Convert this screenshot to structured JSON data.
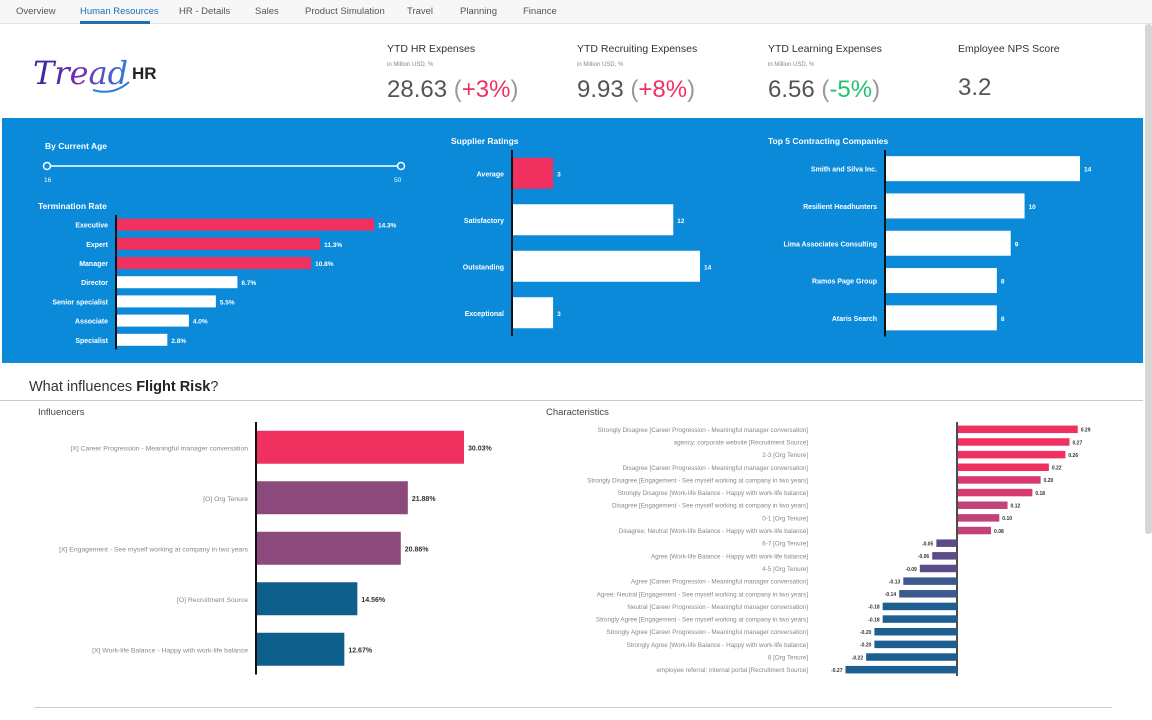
{
  "tabs": [
    "Overview",
    "Human Resources",
    "HR - Details",
    "Sales",
    "Product Simulation",
    "Travel",
    "Planning",
    "Finance"
  ],
  "active_tab": "Human Resources",
  "logo": {
    "script": "Tread",
    "suffix": "HR"
  },
  "kpis": [
    {
      "title": "YTD HR Expenses",
      "unit": "in Million USD, %",
      "value": "28.63",
      "change": "+3%",
      "direction": "up"
    },
    {
      "title": "YTD Recruiting Expenses",
      "unit": "in Million USD, %",
      "value": "9.93",
      "change": "+8%",
      "direction": "up"
    },
    {
      "title": "YTD Learning Expenses",
      "unit": "in Million USD, %",
      "value": "6.56",
      "change": "-5%",
      "direction": "down"
    },
    {
      "title": "Employee NPS Score",
      "unit": "",
      "value": "3.2",
      "change": "",
      "direction": ""
    }
  ],
  "age_filter": {
    "label": "By Current Age",
    "min": 16,
    "max": 50,
    "min_label": "16",
    "max_label": "50"
  },
  "colors": {
    "accent_red": "#f0315f",
    "panel_blue": "#0a8ad9",
    "tab_blue": "#1d6fb0",
    "purple": "#8b4a7b",
    "navy": "#0e5f8c",
    "kpi_positive": "#f0315f",
    "kpi_negative": "#27c06c",
    "char_red": "#f0315f",
    "char_pink": "#c2437a",
    "char_purple": "#5b4b88",
    "char_blue": "#1e5f92"
  },
  "chart_data": [
    {
      "type": "bar",
      "orientation": "horizontal",
      "title": "Termination Rate",
      "categories": [
        "Executive",
        "Expert",
        "Manager",
        "Director",
        "Senior specialist",
        "Associate",
        "Specialist"
      ],
      "values": [
        14.3,
        11.3,
        10.8,
        6.7,
        5.5,
        4.0,
        2.8
      ],
      "labels": [
        "14.3%",
        "11.3%",
        "10.8%",
        "6.7%",
        "5.5%",
        "4.0%",
        "2.8%"
      ],
      "highlight": [
        true,
        true,
        true,
        false,
        false,
        false,
        false
      ],
      "xlim": [
        0,
        14.3
      ]
    },
    {
      "type": "bar",
      "orientation": "horizontal",
      "title": "Supplier Ratings",
      "categories": [
        "Average",
        "Satisfactory",
        "Outstanding",
        "Exceptional"
      ],
      "values": [
        3,
        12,
        14,
        3
      ],
      "labels": [
        "3",
        "12",
        "14",
        "3"
      ],
      "highlight": [
        true,
        false,
        false,
        false
      ],
      "xlim": [
        0,
        14
      ]
    },
    {
      "type": "bar",
      "orientation": "horizontal",
      "title": "Top 5 Contracting Companies",
      "categories": [
        "Smith and Silva Inc.",
        "Resilient Headhunters",
        "Lima Associates Consulting",
        "Ramos Page Group",
        "Ataris Search"
      ],
      "values": [
        14,
        10,
        9,
        8,
        8
      ],
      "labels": [
        "14",
        "10",
        "9",
        "8",
        "8"
      ],
      "xlim": [
        0,
        14
      ]
    },
    {
      "type": "bar",
      "orientation": "horizontal",
      "title": "Influencers",
      "categories": [
        "[X] Career Progression - Meaningful manager conversation",
        "[O] Org Tenure",
        "[X] Engagement - See myself working at company in two years",
        "[O] Recruitment Source",
        "[X] Work-life Balance - Happy with work-life balance"
      ],
      "values": [
        30.03,
        21.88,
        20.86,
        14.56,
        12.67
      ],
      "labels": [
        "30.03%",
        "21.88%",
        "20.86%",
        "14.56%",
        "12.67%"
      ],
      "colors": [
        "#f0315f",
        "#8b4a7b",
        "#8b4a7b",
        "#0e5f8c",
        "#0e5f8c"
      ],
      "xlim": [
        0,
        30.03
      ]
    },
    {
      "type": "bar",
      "orientation": "horizontal",
      "title": "Characteristics",
      "categories": [
        "Strongly Disagree [Career Progression - Meaningful manager conversation]",
        "agency; corporate website [Recruitment Source]",
        "2-3 [Org Tenure]",
        "Disagree [Career Progression - Meaningful manager conversation]",
        "Strongly Disagree [Engagement - See myself working at company in two years]",
        "Strongly Disagree [Work-life Balance - Happy with work-life balance]",
        "Disagree [Engagement - See myself working at company in two years]",
        "0-1 [Org Tenure]",
        "Disagree; Neutral [Work-life Balance - Happy with work-life balance]",
        "6-7 [Org Tenure]",
        "Agree [Work-life Balance - Happy with work-life balance]",
        "4-5 [Org Tenure]",
        "Agree [Career Progression - Meaningful manager conversation]",
        "Agree; Neutral [Engagement - See myself working at company in two years]",
        "Neutral [Career Progression - Meaningful manager conversation]",
        "Strongly Agree [Engagement - See myself working at company in two years]",
        "Strongly Agree [Career Progression - Meaningful manager conversation]",
        "Strongly Agree [Work-life Balance - Happy with work-life balance]",
        "8 [Org Tenure]",
        "employee referral; internal portal [Recruitment Source]"
      ],
      "values": [
        0.29,
        0.27,
        0.26,
        0.22,
        0.2,
        0.18,
        0.12,
        0.1,
        0.08,
        -0.05,
        -0.06,
        -0.09,
        -0.13,
        -0.14,
        -0.18,
        -0.18,
        -0.2,
        -0.2,
        -0.22,
        -0.27
      ],
      "labels": [
        "0.29",
        "0.27",
        "0.26",
        "0.22",
        "0.20",
        "0.18",
        "0.12",
        "0.10",
        "0.08",
        "-0.05",
        "-0.06",
        "-0.09",
        "-0.13",
        "-0.14",
        "-0.18",
        "-0.18",
        "-0.20",
        "-0.20",
        "-0.22",
        "-0.27"
      ],
      "xlim": [
        -0.27,
        0.29
      ]
    }
  ],
  "section": {
    "prefix": "What influences ",
    "bold": "Flight Risk",
    "suffix": "?"
  }
}
